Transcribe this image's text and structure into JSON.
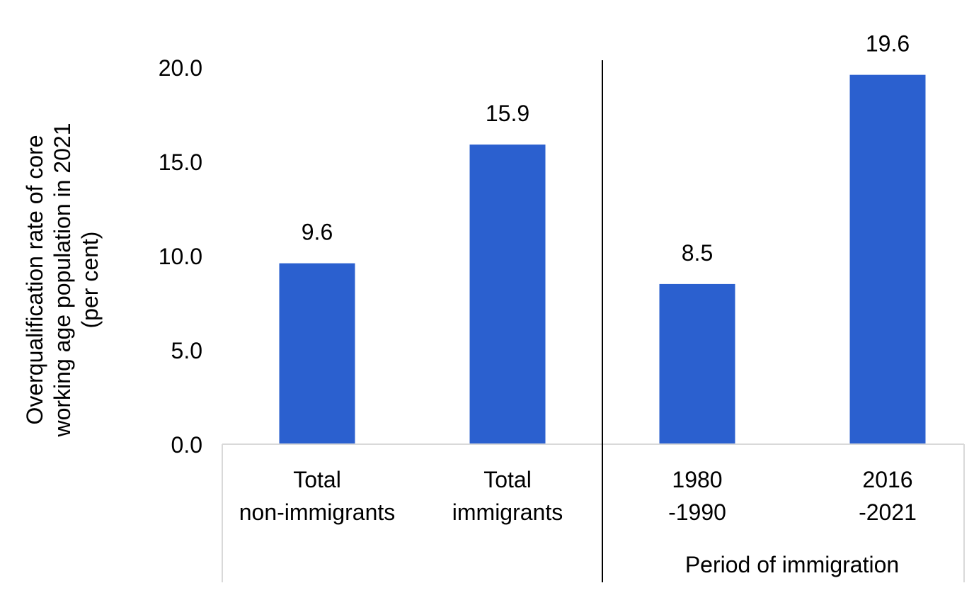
{
  "chart_data": {
    "type": "bar",
    "title": "",
    "ylabel_lines": [
      "Overqualification rate of core",
      "working age population in 2021",
      "(per cent)"
    ],
    "ylim": [
      0,
      20
    ],
    "yticks": [
      "0.0",
      "5.0",
      "10.0",
      "15.0",
      "20.0"
    ],
    "ytick_values": [
      0,
      5,
      10,
      15,
      20
    ],
    "grid": false,
    "legend": "none",
    "bar_color": "#2b60cf",
    "categories": [
      {
        "lines": [
          "Total",
          "non-immigrants"
        ],
        "value": 9.6,
        "label": "9.6"
      },
      {
        "lines": [
          "Total",
          "immigrants"
        ],
        "value": 15.9,
        "label": "15.9"
      },
      {
        "lines": [
          "1980",
          "-1990"
        ],
        "value": 8.5,
        "label": "8.5"
      },
      {
        "lines": [
          "2016",
          "-2021"
        ],
        "value": 19.6,
        "label": "19.6"
      }
    ],
    "group_label": "Period of immigration"
  }
}
